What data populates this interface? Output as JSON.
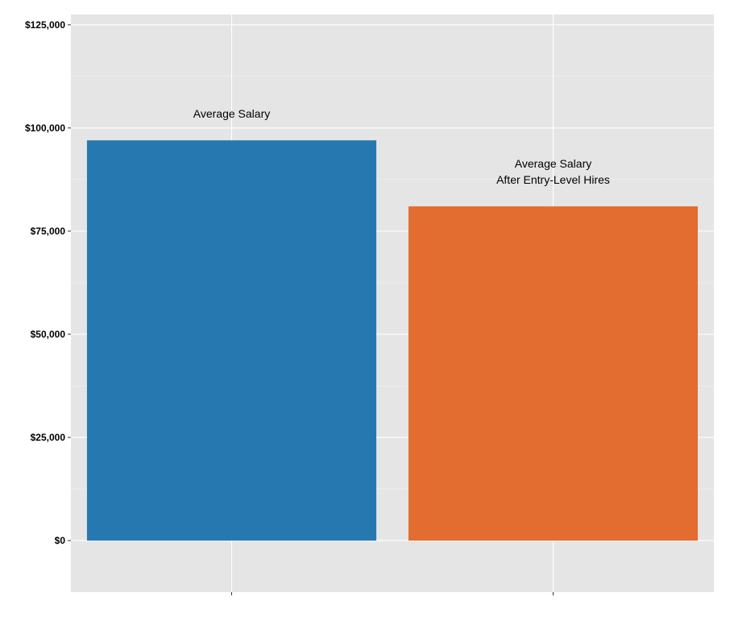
{
  "chart_data": {
    "type": "bar",
    "categories": [
      "",
      ""
    ],
    "values": [
      97000,
      81000
    ],
    "bar_labels": [
      [
        "Average Salary"
      ],
      [
        "Average Salary",
        "After Entry-Level Hires"
      ]
    ],
    "colors": [
      "#2679b0",
      "#e36c30"
    ],
    "background": "#e5e5e5",
    "grid": true,
    "ylim": [
      -12500,
      127500
    ],
    "yticks": [
      0,
      25000,
      50000,
      75000,
      100000,
      125000
    ],
    "ytick_labels": [
      "$0",
      "$25,000",
      "$50,000",
      "$75,000",
      "$100,000",
      "$125,000"
    ],
    "title": "",
    "xlabel": "",
    "ylabel": ""
  }
}
